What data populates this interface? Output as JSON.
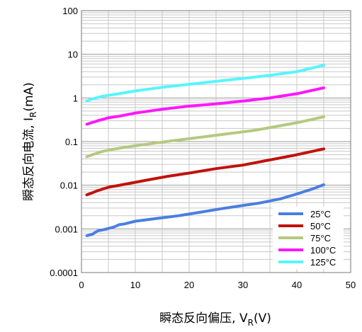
{
  "chart_data": {
    "type": "line",
    "xlabel": "瞬态反向偏压, VR(V)",
    "xlabel_parts": {
      "main": "瞬态反向偏压, V",
      "sub": "R",
      "tail": "(V)"
    },
    "ylabel": "瞬态反向电流, IR(mA)",
    "ylabel_parts": {
      "main": "瞬态反向电流, ",
      "sym": "I",
      "sub": "R",
      "tail": "(mA)"
    },
    "xlim": [
      0,
      50
    ],
    "ylim": [
      0.0001,
      100
    ],
    "y_scale": "log",
    "grid": true,
    "legend_position": "bottom-right",
    "x_ticks": [
      {
        "value": 0,
        "label": "0"
      },
      {
        "value": 10,
        "label": "10"
      },
      {
        "value": 20,
        "label": "20"
      },
      {
        "value": 30,
        "label": "30"
      },
      {
        "value": 40,
        "label": "40"
      },
      {
        "value": 50,
        "label": "50"
      }
    ],
    "y_ticks": [
      {
        "value": 100,
        "label": "100"
      },
      {
        "value": 10,
        "label": "10"
      },
      {
        "value": 1,
        "label": "1"
      },
      {
        "value": 0.1,
        "label": "0.1"
      },
      {
        "value": 0.01,
        "label": "0.01"
      },
      {
        "value": 0.001,
        "label": "0.001"
      },
      {
        "value": 0.0001,
        "label": "0.0001"
      }
    ],
    "series": [
      {
        "name": "25°C",
        "color": "#4a7fe0",
        "x": [
          1,
          2,
          3,
          4,
          6,
          7,
          8,
          10,
          15,
          18,
          22,
          26,
          29,
          33,
          37,
          40,
          43,
          45
        ],
        "y": [
          0.0007,
          0.00075,
          0.0009,
          0.00095,
          0.0011,
          0.00125,
          0.0013,
          0.0015,
          0.0018,
          0.002,
          0.0024,
          0.0029,
          0.0033,
          0.0039,
          0.0049,
          0.0063,
          0.0083,
          0.0103
        ]
      },
      {
        "name": "50°C",
        "color": "#c0120c",
        "x": [
          1,
          3,
          5,
          8,
          12,
          16,
          20,
          25,
          30,
          35,
          40,
          45
        ],
        "y": [
          0.006,
          0.0075,
          0.009,
          0.0105,
          0.013,
          0.016,
          0.019,
          0.024,
          0.029,
          0.038,
          0.05,
          0.068
        ]
      },
      {
        "name": "75°C",
        "color": "#b5c97f",
        "x": [
          1,
          2,
          4,
          6,
          9,
          13,
          17,
          22,
          27,
          32,
          36,
          40,
          45
        ],
        "y": [
          0.045,
          0.05,
          0.06,
          0.067,
          0.077,
          0.09,
          0.105,
          0.125,
          0.15,
          0.18,
          0.22,
          0.27,
          0.37
        ]
      },
      {
        "name": "100°C",
        "color": "#ff16ff",
        "x": [
          1,
          3,
          5,
          7,
          10,
          15,
          20,
          25,
          30,
          35,
          40,
          45
        ],
        "y": [
          0.25,
          0.3,
          0.35,
          0.38,
          0.45,
          0.55,
          0.65,
          0.73,
          0.85,
          1.0,
          1.25,
          1.7
        ]
      },
      {
        "name": "125°C",
        "color": "#57f5ff",
        "x": [
          1,
          2,
          4,
          7,
          10,
          15,
          20,
          25,
          30,
          35,
          40,
          45
        ],
        "y": [
          0.85,
          0.95,
          1.1,
          1.25,
          1.45,
          1.75,
          2.05,
          2.4,
          2.8,
          3.3,
          4.0,
          5.6
        ]
      }
    ]
  }
}
